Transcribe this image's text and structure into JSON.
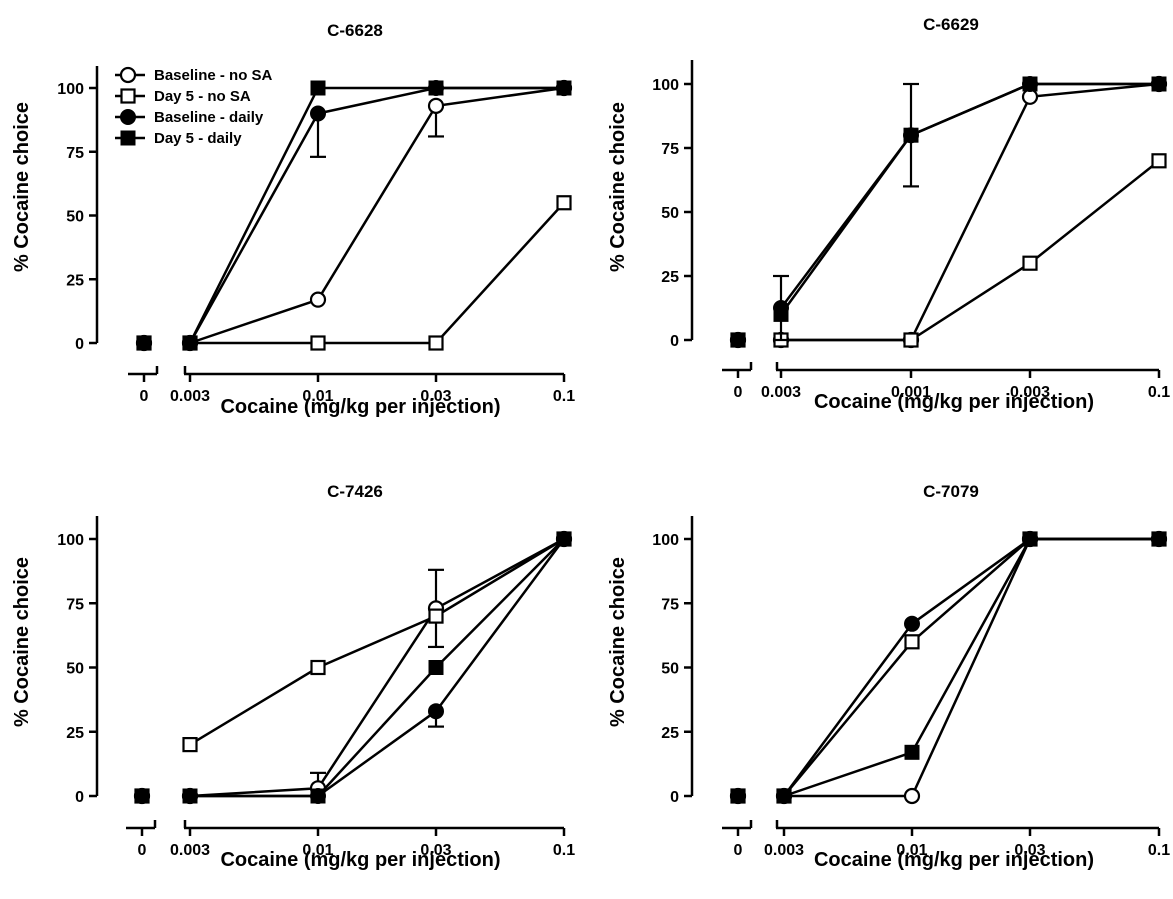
{
  "chart_data": [
    {
      "type": "line",
      "title": "C-6628",
      "xlabel": "Cocaine (mg/kg per injection)",
      "ylabel": "% Cocaine choice",
      "x_ticks": [
        "0",
        "0.003",
        "0.01",
        "0.03",
        "0.1"
      ],
      "y_ticks": [
        "0",
        "25",
        "50",
        "75",
        "100"
      ],
      "ylim": [
        0,
        110
      ],
      "legend": "top-left",
      "series": [
        {
          "name": "Baseline - no SA",
          "marker": "open-circle",
          "values": [
            0,
            0,
            17,
            93,
            100
          ],
          "err_up": [
            null,
            null,
            null,
            null,
            null
          ],
          "err_down": [
            null,
            null,
            null,
            12,
            null
          ]
        },
        {
          "name": "Day 5 - no SA",
          "marker": "open-square",
          "values": [
            0,
            0,
            0,
            0,
            55
          ],
          "err_up": [
            null,
            null,
            null,
            null,
            null
          ],
          "err_down": [
            null,
            null,
            null,
            null,
            null
          ]
        },
        {
          "name": "Baseline - daily",
          "marker": "filled-circle",
          "values": [
            0,
            0,
            90,
            100,
            100
          ],
          "err_up": [
            null,
            null,
            null,
            null,
            null
          ],
          "err_down": [
            null,
            null,
            17,
            null,
            null
          ]
        },
        {
          "name": "Day 5 - daily",
          "marker": "filled-square",
          "values": [
            0,
            0,
            100,
            100,
            100
          ],
          "err_up": [
            null,
            null,
            null,
            null,
            null
          ],
          "err_down": [
            null,
            null,
            null,
            null,
            null
          ]
        }
      ]
    },
    {
      "type": "line",
      "title": "C-6629",
      "xlabel": "Cocaine (mg/kg per injection)",
      "ylabel": "% Cocaine choice",
      "x_ticks": [
        "0",
        "0.003",
        "0.001",
        "0.003",
        "0.1"
      ],
      "y_ticks": [
        "0",
        "25",
        "50",
        "75",
        "100"
      ],
      "ylim": [
        0,
        110
      ],
      "series": [
        {
          "name": "",
          "marker": "open-circle",
          "values": [
            0,
            0,
            0,
            95,
            100
          ],
          "err_up": [
            null,
            null,
            null,
            null,
            null
          ],
          "err_down": [
            null,
            null,
            null,
            null,
            null
          ]
        },
        {
          "name": "",
          "marker": "open-square",
          "values": [
            0,
            0,
            0,
            30,
            70
          ],
          "err_up": [
            null,
            null,
            null,
            null,
            null
          ],
          "err_down": [
            null,
            null,
            null,
            null,
            null
          ]
        },
        {
          "name": "",
          "marker": "filled-circle",
          "values": [
            0,
            12.5,
            80,
            100,
            100
          ],
          "err_up": [
            null,
            null,
            null,
            null,
            null
          ],
          "err_down": [
            null,
            null,
            null,
            null,
            null
          ]
        },
        {
          "name": "",
          "marker": "filled-square",
          "values": [
            0,
            10,
            80,
            100,
            100
          ],
          "err_up": [
            null,
            15,
            20,
            null,
            null
          ],
          "err_down": [
            null,
            10,
            20,
            null,
            null
          ]
        }
      ]
    },
    {
      "type": "line",
      "title": "C-7426",
      "xlabel": "Cocaine (mg/kg per injection)",
      "ylabel": "% Cocaine choice",
      "x_ticks": [
        "0",
        "0.003",
        "0.01",
        "0.03",
        "0.1"
      ],
      "y_ticks": [
        "0",
        "25",
        "50",
        "75",
        "100"
      ],
      "ylim": [
        0,
        110
      ],
      "series": [
        {
          "name": "",
          "marker": "open-circle",
          "values": [
            0,
            0,
            3,
            73,
            100
          ],
          "err_up": [
            null,
            null,
            6,
            15,
            null
          ],
          "err_down": [
            null,
            null,
            null,
            null,
            null
          ]
        },
        {
          "name": "",
          "marker": "open-square",
          "values": [
            0,
            20,
            50,
            70,
            100
          ],
          "err_up": [
            null,
            null,
            null,
            null,
            null
          ],
          "err_down": [
            null,
            null,
            null,
            12,
            null
          ]
        },
        {
          "name": "",
          "marker": "filled-circle",
          "values": [
            0,
            0,
            0,
            33,
            100
          ],
          "err_up": [
            null,
            null,
            null,
            null,
            null
          ],
          "err_down": [
            null,
            null,
            null,
            6,
            null
          ]
        },
        {
          "name": "",
          "marker": "filled-square",
          "values": [
            0,
            0,
            0,
            50,
            100
          ],
          "err_up": [
            null,
            null,
            null,
            null,
            null
          ],
          "err_down": [
            null,
            null,
            null,
            null,
            null
          ]
        }
      ]
    },
    {
      "type": "line",
      "title": "C-7079",
      "xlabel": "Cocaine (mg/kg per injection)",
      "ylabel": "% Cocaine choice",
      "x_ticks": [
        "0",
        "0.003",
        "0.01",
        "0.03",
        "0.1"
      ],
      "y_ticks": [
        "0",
        "25",
        "50",
        "75",
        "100"
      ],
      "ylim": [
        0,
        110
      ],
      "series": [
        {
          "name": "",
          "marker": "open-circle",
          "values": [
            0,
            0,
            0,
            100,
            100
          ],
          "err_up": [
            null,
            null,
            null,
            null,
            null
          ],
          "err_down": [
            null,
            null,
            null,
            null,
            null
          ]
        },
        {
          "name": "",
          "marker": "open-square",
          "values": [
            0,
            0,
            60,
            100,
            100
          ],
          "err_up": [
            null,
            null,
            null,
            null,
            null
          ],
          "err_down": [
            null,
            null,
            null,
            null,
            null
          ]
        },
        {
          "name": "",
          "marker": "filled-circle",
          "values": [
            0,
            0,
            67,
            100,
            100
          ],
          "err_up": [
            null,
            null,
            null,
            null,
            null
          ],
          "err_down": [
            null,
            null,
            null,
            null,
            null
          ]
        },
        {
          "name": "",
          "marker": "filled-square",
          "values": [
            0,
            0,
            17,
            100,
            100
          ],
          "err_up": [
            null,
            null,
            null,
            null,
            null
          ],
          "err_down": [
            null,
            null,
            null,
            null,
            null
          ]
        }
      ]
    }
  ]
}
